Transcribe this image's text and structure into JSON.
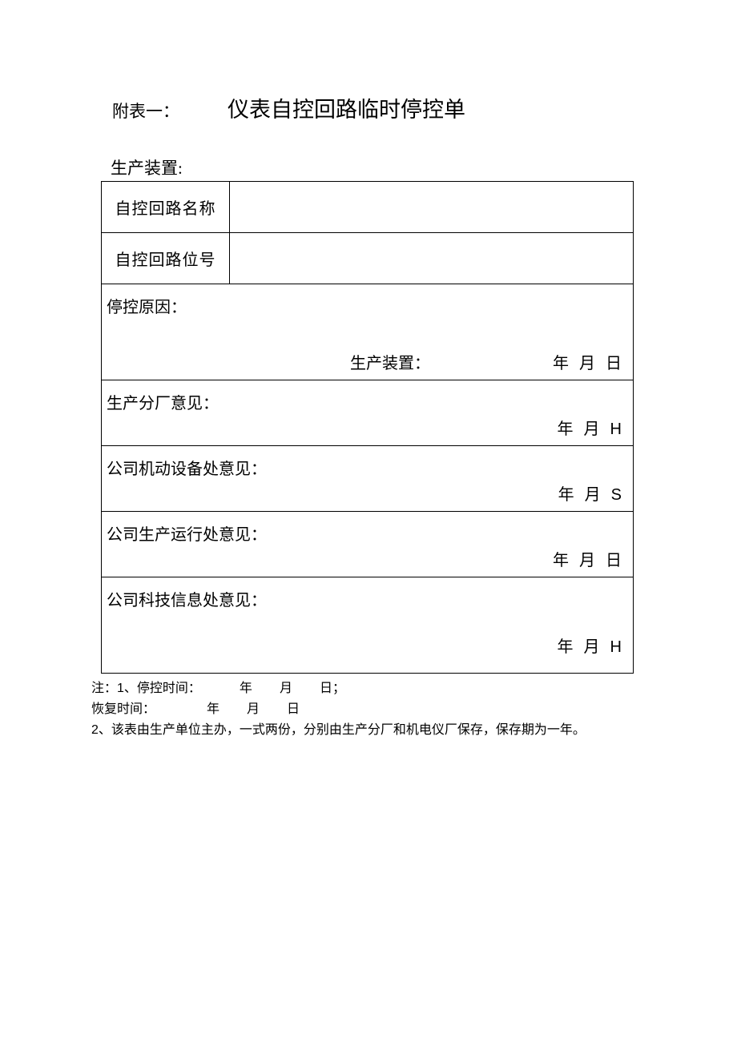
{
  "header": {
    "appendix_label": "附表一：",
    "title": "仪表自控回路临时停控单",
    "sub_header": "生产装置:"
  },
  "rows": {
    "loop_name_label": "自控回路名称",
    "loop_id_label": "自控回路位号",
    "stop_reason_label": "停控原因：",
    "unit_label_mid": "生产装置：",
    "date_year": "年",
    "date_month": "月",
    "date_day": "日",
    "glyph_H": "H",
    "glyph_S": "S",
    "factory_opinion": "生产分厂意见：",
    "mech_opinion": "公司机动设备处意见：",
    "prod_opinion": "公司生产运行处意见：",
    "tech_opinion": "公司科技信息处意见："
  },
  "notes": {
    "prefix": "注：",
    "num1": "1",
    "line1_label": "、停控时间：",
    "date_year": "年",
    "date_month": "月",
    "date_day_colon": "日；",
    "date_day": "日",
    "line2_label": "恢复时间：",
    "num2": "2",
    "line3": "、该表由生产单位主办，一式两份，分别由生产分厂和机电仪厂保存，保存期为一年。"
  },
  "style": {
    "background": "#ffffff",
    "text_color": "#000000",
    "border_color": "#000000"
  }
}
